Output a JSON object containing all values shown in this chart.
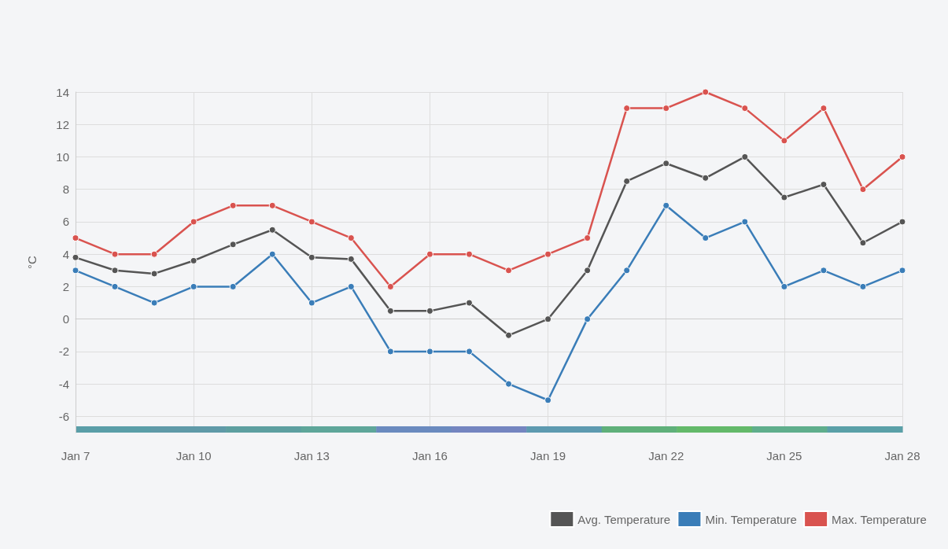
{
  "chart_data": {
    "type": "line",
    "ylabel": "°C",
    "categories": [
      "Jan 7",
      null,
      null,
      "Jan 10",
      null,
      null,
      "Jan 13",
      null,
      null,
      "Jan 16",
      null,
      null,
      "Jan 19",
      null,
      null,
      "Jan 22",
      null,
      null,
      "Jan 25",
      null,
      null,
      "Jan 28"
    ],
    "series": [
      {
        "name": "Avg. Temperature",
        "color": "#555555",
        "values": [
          3.8,
          3,
          2.8,
          3.6,
          4.6,
          5.5,
          3.8,
          3.7,
          0.5,
          0.5,
          1,
          -1,
          0,
          3,
          8.5,
          9.6,
          8.7,
          10,
          7.5,
          8.3,
          4.7,
          6
        ]
      },
      {
        "name": "Min. Temperature",
        "color": "#3a7db8",
        "values": [
          3,
          2,
          1,
          2,
          2,
          4,
          1,
          2,
          -2,
          -2,
          -2,
          -4,
          -5,
          0,
          3,
          7,
          5,
          6,
          2,
          3,
          2,
          3
        ]
      },
      {
        "name": "Max. Temperature",
        "color": "#d9534f",
        "values": [
          5,
          4,
          4,
          6,
          7,
          7,
          6,
          5,
          2,
          4,
          4,
          3,
          4,
          5,
          13,
          13,
          14,
          13,
          11,
          13,
          8,
          10
        ]
      }
    ],
    "ylim": [
      -7,
      14
    ],
    "yticks": [
      -6,
      -4,
      -2,
      0,
      2,
      4,
      6,
      8,
      10,
      12,
      14
    ],
    "grid": true,
    "legend": "bottom right",
    "marker": "circle",
    "line_style": "solid"
  }
}
